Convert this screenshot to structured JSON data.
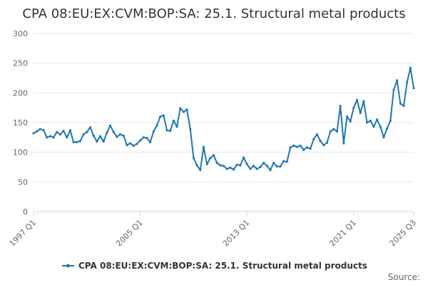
{
  "chart_data": {
    "type": "line",
    "title": "CPA 08:EU:EX:CVM:BOP:SA: 25.1. Structural metal products",
    "source_label": "Source:",
    "ylim": [
      0,
      300
    ],
    "y_ticks": [
      0,
      50,
      100,
      150,
      200,
      250,
      300
    ],
    "x_ticks": [
      "1997 Q1",
      "2005 Q1",
      "2013 Q1",
      "2021 Q1",
      "2025 Q3"
    ],
    "grid": true,
    "legend_position": "bottom",
    "series_color": "#1f77b4",
    "series": [
      {
        "name": "CPA 08:EU:EX:CVM:BOP:SA: 25.1. Structural metal products",
        "x": [
          "1997 Q1",
          "1997 Q2",
          "1997 Q3",
          "1997 Q4",
          "1998 Q1",
          "1998 Q2",
          "1998 Q3",
          "1998 Q4",
          "1999 Q1",
          "1999 Q2",
          "1999 Q3",
          "1999 Q4",
          "2000 Q1",
          "2000 Q2",
          "2000 Q3",
          "2000 Q4",
          "2001 Q1",
          "2001 Q2",
          "2001 Q3",
          "2001 Q4",
          "2002 Q1",
          "2002 Q2",
          "2002 Q3",
          "2002 Q4",
          "2003 Q1",
          "2003 Q2",
          "2003 Q3",
          "2003 Q4",
          "2004 Q1",
          "2004 Q2",
          "2004 Q3",
          "2004 Q4",
          "2005 Q1",
          "2005 Q2",
          "2005 Q3",
          "2005 Q4",
          "2006 Q1",
          "2006 Q2",
          "2006 Q3",
          "2006 Q4",
          "2007 Q1",
          "2007 Q2",
          "2007 Q3",
          "2007 Q4",
          "2008 Q1",
          "2008 Q2",
          "2008 Q3",
          "2008 Q4",
          "2009 Q1",
          "2009 Q2",
          "2009 Q3",
          "2009 Q4",
          "2010 Q1",
          "2010 Q2",
          "2010 Q3",
          "2010 Q4",
          "2011 Q1",
          "2011 Q2",
          "2011 Q3",
          "2011 Q4",
          "2012 Q1",
          "2012 Q2",
          "2012 Q3",
          "2012 Q4",
          "2013 Q1",
          "2013 Q2",
          "2013 Q3",
          "2013 Q4",
          "2014 Q1",
          "2014 Q2",
          "2014 Q3",
          "2014 Q4",
          "2015 Q1",
          "2015 Q2",
          "2015 Q3",
          "2015 Q4",
          "2016 Q1",
          "2016 Q2",
          "2016 Q3",
          "2016 Q4",
          "2017 Q1",
          "2017 Q2",
          "2017 Q3",
          "2017 Q4",
          "2018 Q1",
          "2018 Q2",
          "2018 Q3",
          "2018 Q4",
          "2019 Q1",
          "2019 Q2",
          "2019 Q3",
          "2019 Q4",
          "2020 Q1",
          "2020 Q2",
          "2020 Q3",
          "2020 Q4",
          "2021 Q1",
          "2021 Q2",
          "2021 Q3",
          "2021 Q4",
          "2022 Q1",
          "2022 Q2",
          "2022 Q3",
          "2022 Q4",
          "2023 Q1",
          "2023 Q2",
          "2023 Q3",
          "2023 Q4",
          "2024 Q1",
          "2024 Q2",
          "2024 Q3",
          "2024 Q4",
          "2025 Q1",
          "2025 Q2",
          "2025 Q3"
        ],
        "values": [
          132,
          135,
          139,
          137,
          125,
          127,
          125,
          134,
          130,
          136,
          125,
          137,
          117,
          117,
          119,
          130,
          134,
          142,
          128,
          118,
          127,
          118,
          133,
          145,
          134,
          126,
          130,
          128,
          112,
          115,
          111,
          114,
          120,
          125,
          124,
          117,
          135,
          145,
          160,
          162,
          137,
          136,
          153,
          143,
          174,
          168,
          172,
          139,
          90,
          78,
          70,
          109,
          80,
          90,
          95,
          82,
          78,
          77,
          72,
          74,
          71,
          79,
          78,
          91,
          80,
          72,
          77,
          72,
          75,
          82,
          77,
          70,
          82,
          76,
          76,
          85,
          84,
          108,
          111,
          109,
          111,
          104,
          108,
          106,
          122,
          130,
          119,
          112,
          116,
          135,
          139,
          135,
          178,
          115,
          160,
          152,
          175,
          188,
          166,
          186,
          150,
          153,
          143,
          155,
          143,
          125,
          140,
          153,
          205,
          221,
          182,
          178,
          218,
          242,
          208
        ]
      }
    ]
  }
}
